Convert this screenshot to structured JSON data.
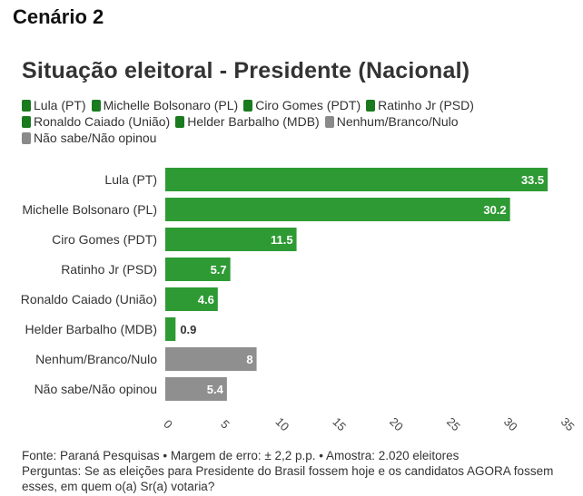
{
  "header": "Cenário 2",
  "chart_data": {
    "type": "bar",
    "orientation": "horizontal",
    "title": "Situação eleitoral - Presidente (Nacional)",
    "categories": [
      "Lula (PT)",
      "Michelle Bolsonaro (PL)",
      "Ciro Gomes (PDT)",
      "Ratinho Jr (PSD)",
      "Ronaldo Caiado (União)",
      "Helder Barbalho (MDB)",
      "Nenhum/Branco/Nulo",
      "Não sabe/Não opinou"
    ],
    "values": [
      33.5,
      30.2,
      11.5,
      5.7,
      4.6,
      0.9,
      8,
      5.4
    ],
    "value_labels": [
      "33.5",
      "30.2",
      "11.5",
      "5.7",
      "4.6",
      "0.9",
      "8",
      "5.4"
    ],
    "colors": [
      "#2e9a33",
      "#2e9a33",
      "#2e9a33",
      "#2e9a33",
      "#2e9a33",
      "#2e9a33",
      "#8f8f8f",
      "#8f8f8f"
    ],
    "legend": [
      {
        "label": "Lula (PT)",
        "color": "#1a7a1f"
      },
      {
        "label": "Michelle Bolsonaro (PL)",
        "color": "#1a7a1f"
      },
      {
        "label": "Ciro Gomes (PDT)",
        "color": "#1a7a1f"
      },
      {
        "label": "Ratinho Jr (PSD)",
        "color": "#1a7a1f"
      },
      {
        "label": "Ronaldo Caiado (União)",
        "color": "#1a7a1f"
      },
      {
        "label": "Helder Barbalho (MDB)",
        "color": "#1a7a1f"
      },
      {
        "label": "Nenhum/Branco/Nulo",
        "color": "#8a8a8a"
      },
      {
        "label": "Não sabe/Não opinou",
        "color": "#8a8a8a"
      }
    ],
    "legend_position": "top",
    "xlim": [
      0,
      35
    ],
    "xticks": [
      "0",
      "5",
      "10",
      "15",
      "20",
      "25",
      "30",
      "35"
    ],
    "grid": false
  },
  "footer": {
    "source": "Fonte: Paraná Pesquisas • Margem de erro: ± 2,2 p.p. • Amostra: 2.020 eleitores",
    "question_line1": "Perguntas: Se as eleições para Presidente do Brasil fossem hoje e os candidatos AGORA fossem",
    "question_line2": "esses, em quem o(a) Sr(a) votaria?"
  }
}
